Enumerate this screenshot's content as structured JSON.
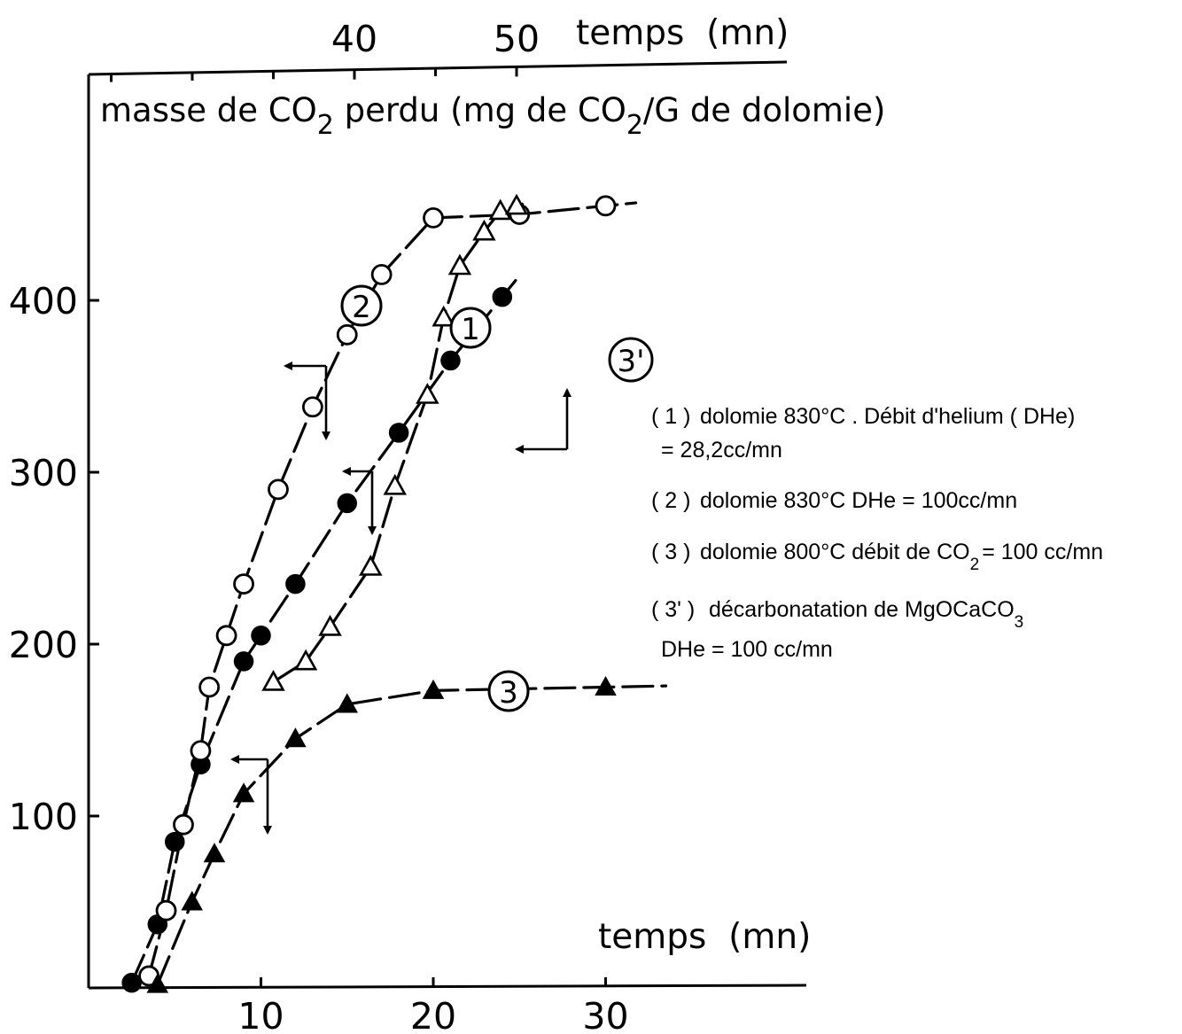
{
  "chart_data": {
    "type": "scatter",
    "y_axis": {
      "label": "masse de CO",
      "label_sub": "2",
      "label_rest": " perdu (mg de CO",
      "label_sub2": "2",
      "label_end": "/G de dolomie)",
      "ticks": [
        "100",
        "200",
        "300",
        "400"
      ],
      "tick_values": [
        100,
        200,
        300,
        400
      ],
      "ylim": [
        0,
        470
      ]
    },
    "x_axis_bottom": {
      "label": "temps  (mn)",
      "ticks": [
        "10",
        "20",
        "30"
      ],
      "tick_values": [
        10,
        20,
        30
      ],
      "xlim": [
        0,
        32
      ]
    },
    "x_axis_top": {
      "label": "temps  (mn)",
      "ticks": [
        "40",
        "50"
      ],
      "tick_values": [
        40,
        50
      ],
      "xlim": [
        24,
        50
      ]
    },
    "series": [
      {
        "name": "1",
        "marker": "filled-circle",
        "axis": "bottom",
        "x": [
          2.5,
          4,
          5,
          6.5,
          9,
          10,
          12,
          15,
          18,
          21,
          24
        ],
        "y": [
          3,
          37,
          85,
          130,
          190,
          205,
          235,
          282,
          323,
          365,
          402
        ]
      },
      {
        "name": "2",
        "marker": "open-circle",
        "axis": "bottom",
        "x": [
          3.5,
          4.5,
          5.5,
          6.5,
          7,
          8,
          9,
          11,
          13,
          15,
          17,
          20,
          25,
          30
        ],
        "y": [
          7,
          45,
          95,
          138,
          175,
          205,
          235,
          290,
          338,
          380,
          415,
          448,
          450,
          455
        ]
      },
      {
        "name": "3",
        "marker": "filled-triangle",
        "axis": "bottom",
        "x": [
          4,
          6,
          7.3,
          9,
          12,
          15,
          20,
          30
        ],
        "y": [
          2,
          50,
          78,
          113,
          145,
          165,
          173,
          175
        ]
      },
      {
        "name": "3'",
        "marker": "open-triangle",
        "axis": "top",
        "x": [
          35,
          37,
          38.5,
          41,
          42.5,
          44.5,
          45.5,
          46.5,
          48,
          49,
          50
        ],
        "y": [
          178,
          190,
          210,
          245,
          292,
          345,
          390,
          420,
          440,
          452,
          455
        ]
      }
    ],
    "curve_labels": [
      "2",
      "1",
      "3'",
      "3"
    ],
    "legend": [
      {
        "num": "( 1 )",
        "text": "dolomie 830°C . Débit d'helium ( DHe)",
        "line2": "= 28,2cc/mn"
      },
      {
        "num": "( 2 )",
        "text": "dolomie 830°C DHe = 100cc/mn"
      },
      {
        "num": "( 3 )",
        "text": "dolomie 800°C  débit de CO",
        "sub": "2",
        "rest": "= 100 cc/mn"
      },
      {
        "num": "( 3' )",
        "text": "décarbonatation de MgOCaCO",
        "sub": "3",
        "line2": "DHe = 100 cc/mn"
      }
    ]
  }
}
